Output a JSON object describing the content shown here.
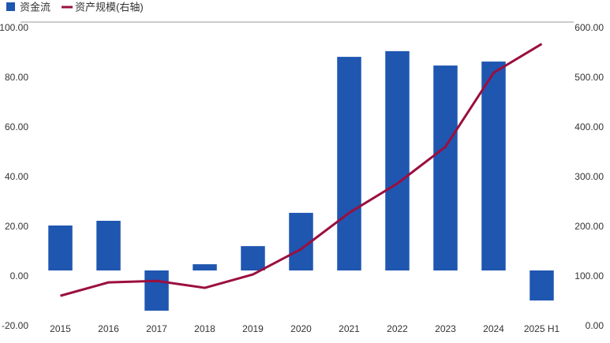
{
  "chart_data": {
    "type": "bar_line",
    "categories": [
      "2015",
      "2016",
      "2017",
      "2018",
      "2019",
      "2020",
      "2021",
      "2022",
      "2023",
      "2024",
      "2025 H1"
    ],
    "series": [
      {
        "name": "资金流",
        "type": "bar",
        "color": "#1f56b0",
        "values": [
          18.1,
          20.0,
          -16.2,
          2.5,
          9.8,
          23.2,
          86.0,
          88.3,
          82.5,
          84.1,
          -12.1
        ]
      },
      {
        "name": "资产规模(右轴)",
        "type": "line",
        "axis": "y2",
        "color": "#9b0f3f",
        "values": [
          49,
          76,
          79,
          65,
          92,
          143,
          216,
          275,
          349,
          498,
          556
        ]
      }
    ],
    "ylim": [
      -20,
      100
    ],
    "yticks": [
      {
        "value": -20,
        "label": "-20.00"
      },
      {
        "value": 0,
        "label": "0.00"
      },
      {
        "value": 20,
        "label": "20.00"
      },
      {
        "value": 40,
        "label": "40.00"
      },
      {
        "value": 60,
        "label": "60.00"
      },
      {
        "value": 80,
        "label": "80.00"
      },
      {
        "value": 100,
        "label": "100.00"
      }
    ],
    "y2lim": [
      0,
      600
    ],
    "y2ticks": [
      {
        "value": 0,
        "label": "0.00"
      },
      {
        "value": 100,
        "label": "100.00"
      },
      {
        "value": 200,
        "label": "200.00"
      },
      {
        "value": 300,
        "label": "300.00"
      },
      {
        "value": 400,
        "label": "400.00"
      },
      {
        "value": 500,
        "label": "500.00"
      },
      {
        "value": 600,
        "label": "600.00"
      }
    ],
    "legend": "top-left"
  }
}
